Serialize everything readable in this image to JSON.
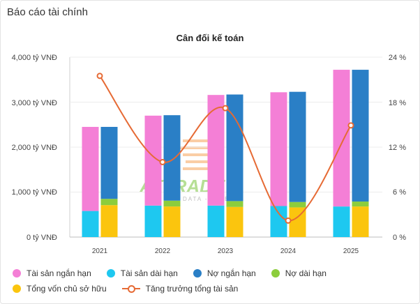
{
  "header": {
    "title": "Báo cáo tài chính"
  },
  "watermark": {
    "brand": "ATTRADE",
    "tagline": "DATA - INVEST"
  },
  "colors": {
    "short_assets": "#f47fd6",
    "long_assets": "#1ec8f0",
    "short_debt": "#2a7fc6",
    "long_debt": "#8ccd3c",
    "equity": "#fbc50e",
    "growth": "#e66a34"
  },
  "chart_data": {
    "type": "bar",
    "title": "Cân đối kế toán",
    "categories": [
      "2021",
      "2022",
      "2023",
      "2024",
      "2025"
    ],
    "y_left": {
      "ticks": [
        "4,000 tỷ VNĐ",
        "3,000 tỷ VNĐ",
        "2,000 tỷ VNĐ",
        "1,000 tỷ VNĐ",
        "0 tỷ VNĐ"
      ],
      "range": [
        0,
        4000
      ]
    },
    "y_right": {
      "ticks": [
        "24 %",
        "18 %",
        "12 %",
        "6 %",
        "0 %"
      ],
      "range": [
        0,
        24
      ]
    },
    "series": [
      {
        "name": "Tài sản ngắn hạn",
        "stack": "assets",
        "values": [
          1870,
          2000,
          2460,
          2530,
          3040
        ]
      },
      {
        "name": "Tài sản dài hạn",
        "stack": "assets",
        "values": [
          580,
          700,
          700,
          690,
          680
        ]
      },
      {
        "name": "Nợ ngắn hạn",
        "stack": "capital",
        "values": [
          1600,
          1900,
          2370,
          2450,
          2930
        ]
      },
      {
        "name": "Nợ dài hạn",
        "stack": "capital",
        "values": [
          140,
          130,
          130,
          120,
          110
        ]
      },
      {
        "name": "Tổng vốn chủ sở hữu",
        "stack": "capital",
        "values": [
          710,
          680,
          670,
          660,
          680
        ]
      },
      {
        "name": "Tăng trưởng tổng tài sản",
        "type": "line",
        "axis": "right",
        "values": [
          21.5,
          10.0,
          17.2,
          2.2,
          14.9
        ]
      }
    ],
    "legend_position": "bottom"
  }
}
